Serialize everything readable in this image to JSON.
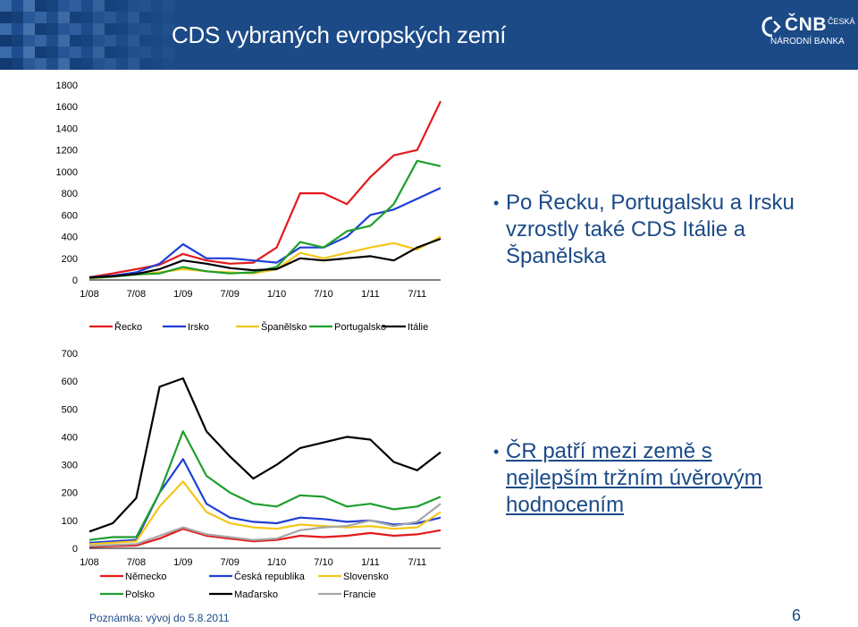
{
  "header": {
    "title": "CDS vybraných evropských zemí"
  },
  "logo": {
    "name": "ČNB",
    "line1": "ČESKÁ",
    "line2": "NÁRODNÍ BANKA"
  },
  "colors": {
    "header_bg": "#1b4a87",
    "text_blue": "#1b4a87"
  },
  "bullets": {
    "first": "Po Řecku, Portugalsku a Irsku vzrostly také CDS Itálie a Španělska",
    "second": "ČR patří mezi země s nejlepším tržním úvěrovým hodnocením"
  },
  "footer": {
    "note": "Poznámka: vývoj do 5.8.2011",
    "page": "6"
  },
  "chart_data": [
    {
      "type": "line",
      "x": [
        "1/08",
        "4/08",
        "7/08",
        "10/08",
        "1/09",
        "4/09",
        "7/09",
        "10/09",
        "1/10",
        "4/10",
        "7/10",
        "10/10",
        "1/11",
        "4/11",
        "7/11",
        "8/11"
      ],
      "xticks": [
        "1/08",
        "7/08",
        "1/09",
        "7/09",
        "1/10",
        "7/10",
        "1/11",
        "7/11"
      ],
      "ylim": [
        0,
        1800
      ],
      "yticks": [
        0,
        200,
        400,
        600,
        800,
        1000,
        1200,
        1400,
        1600,
        1800
      ],
      "legend_position": "bottom",
      "series": [
        {
          "name": "Řecko",
          "color": "#e31a1c",
          "values": [
            25,
            60,
            100,
            140,
            240,
            180,
            150,
            160,
            300,
            800,
            800,
            700,
            950,
            1150,
            1200,
            1650
          ]
        },
        {
          "name": "Irsko",
          "color": "#1f3fd6",
          "values": [
            25,
            40,
            70,
            150,
            330,
            200,
            200,
            180,
            160,
            300,
            300,
            400,
            600,
            650,
            750,
            850
          ]
        },
        {
          "name": "Španělsko",
          "color": "#f5c518",
          "values": [
            15,
            30,
            50,
            70,
            100,
            80,
            70,
            60,
            100,
            250,
            200,
            250,
            300,
            340,
            280,
            400
          ]
        },
        {
          "name": "Portugalsko",
          "color": "#1f9e2e",
          "values": [
            18,
            30,
            50,
            60,
            120,
            80,
            60,
            70,
            120,
            350,
            300,
            450,
            500,
            700,
            1100,
            1050
          ]
        },
        {
          "name": "Itálie",
          "color": "#000000",
          "values": [
            22,
            35,
            55,
            100,
            180,
            150,
            110,
            90,
            100,
            200,
            180,
            200,
            220,
            180,
            300,
            380
          ]
        }
      ]
    },
    {
      "type": "line",
      "x": [
        "1/08",
        "4/08",
        "7/08",
        "10/08",
        "1/09",
        "4/09",
        "7/09",
        "10/09",
        "1/10",
        "4/10",
        "7/10",
        "10/10",
        "1/11",
        "4/11",
        "7/11",
        "8/11"
      ],
      "xticks": [
        "1/08",
        "7/08",
        "1/09",
        "7/09",
        "1/10",
        "7/10",
        "1/11",
        "7/11"
      ],
      "ylim": [
        0,
        700
      ],
      "yticks": [
        0,
        100,
        200,
        300,
        400,
        500,
        600,
        700
      ],
      "legend_position": "bottom",
      "series": [
        {
          "name": "Německo",
          "color": "#e31a1c",
          "values": [
            5,
            8,
            10,
            35,
            70,
            45,
            35,
            25,
            30,
            45,
            40,
            45,
            55,
            45,
            50,
            65
          ]
        },
        {
          "name": "Česká republika",
          "color": "#1f3fd6",
          "values": [
            20,
            25,
            30,
            200,
            320,
            160,
            110,
            95,
            90,
            110,
            105,
            95,
            100,
            85,
            90,
            110
          ]
        },
        {
          "name": "Slovensko",
          "color": "#f5c518",
          "values": [
            15,
            20,
            25,
            150,
            240,
            130,
            90,
            75,
            70,
            85,
            80,
            75,
            80,
            70,
            75,
            130
          ]
        },
        {
          "name": "Polsko",
          "color": "#1f9e2e",
          "values": [
            30,
            40,
            40,
            200,
            420,
            260,
            200,
            160,
            150,
            190,
            185,
            150,
            160,
            140,
            150,
            185
          ]
        },
        {
          "name": "Maďarsko",
          "color": "#000000",
          "values": [
            60,
            90,
            180,
            580,
            610,
            420,
            330,
            250,
            300,
            360,
            380,
            400,
            390,
            310,
            280,
            345
          ]
        },
        {
          "name": "Francie",
          "color": "#a6a6a6",
          "values": [
            8,
            12,
            15,
            45,
            75,
            50,
            40,
            30,
            35,
            65,
            75,
            80,
            100,
            80,
            95,
            160
          ]
        }
      ]
    }
  ]
}
